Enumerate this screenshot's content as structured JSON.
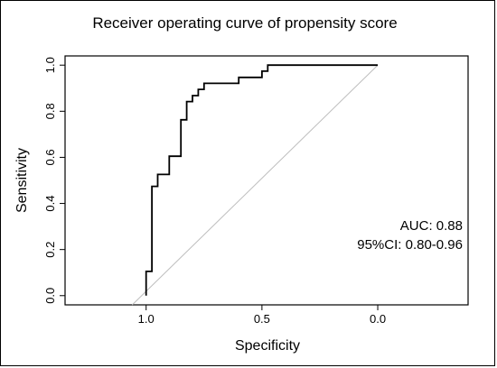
{
  "chart_data": {
    "type": "line",
    "title": "Receiver operating curve of propensity score",
    "xlabel": "Specificity",
    "ylabel": "Sensitivity",
    "x_reversed": true,
    "xlim": [
      1.35,
      -0.39
    ],
    "ylim": [
      -0.04,
      1.04
    ],
    "x_ticks": [
      1.0,
      0.5,
      0.0
    ],
    "x_tick_labels": [
      "1.0",
      "0.5",
      "0.0"
    ],
    "y_ticks": [
      0.0,
      0.2,
      0.4,
      0.6,
      0.8,
      1.0
    ],
    "y_tick_labels": [
      "0.0",
      "0.2",
      "0.4",
      "0.6",
      "0.8",
      "1.0"
    ],
    "grid": false,
    "series": [
      {
        "line_style": "step",
        "color": "#000000",
        "x": [
          1.0,
          1.0,
          0.975,
          0.975,
          0.95,
          0.95,
          0.9,
          0.9,
          0.85,
          0.85,
          0.825,
          0.825,
          0.8,
          0.8,
          0.775,
          0.775,
          0.75,
          0.75,
          0.725,
          0.725,
          0.7,
          0.7,
          0.6,
          0.6,
          0.5,
          0.5,
          0.475,
          0.475,
          0.0
        ],
        "y": [
          0.0,
          0.105,
          0.105,
          0.474,
          0.474,
          0.526,
          0.526,
          0.605,
          0.605,
          0.763,
          0.763,
          0.842,
          0.842,
          0.868,
          0.868,
          0.895,
          0.895,
          0.921,
          0.921,
          0.921,
          0.921,
          0.921,
          0.921,
          0.947,
          0.947,
          0.974,
          0.974,
          1.0,
          1.0
        ]
      }
    ],
    "reference_line": {
      "x": [
        1.06,
        0.0
      ],
      "y": [
        -0.04,
        1.0
      ],
      "color": "#bdbdbd"
    },
    "annotations": {
      "auc": "AUC: 0.88",
      "ci": "95%CI: 0.80-0.96"
    }
  }
}
